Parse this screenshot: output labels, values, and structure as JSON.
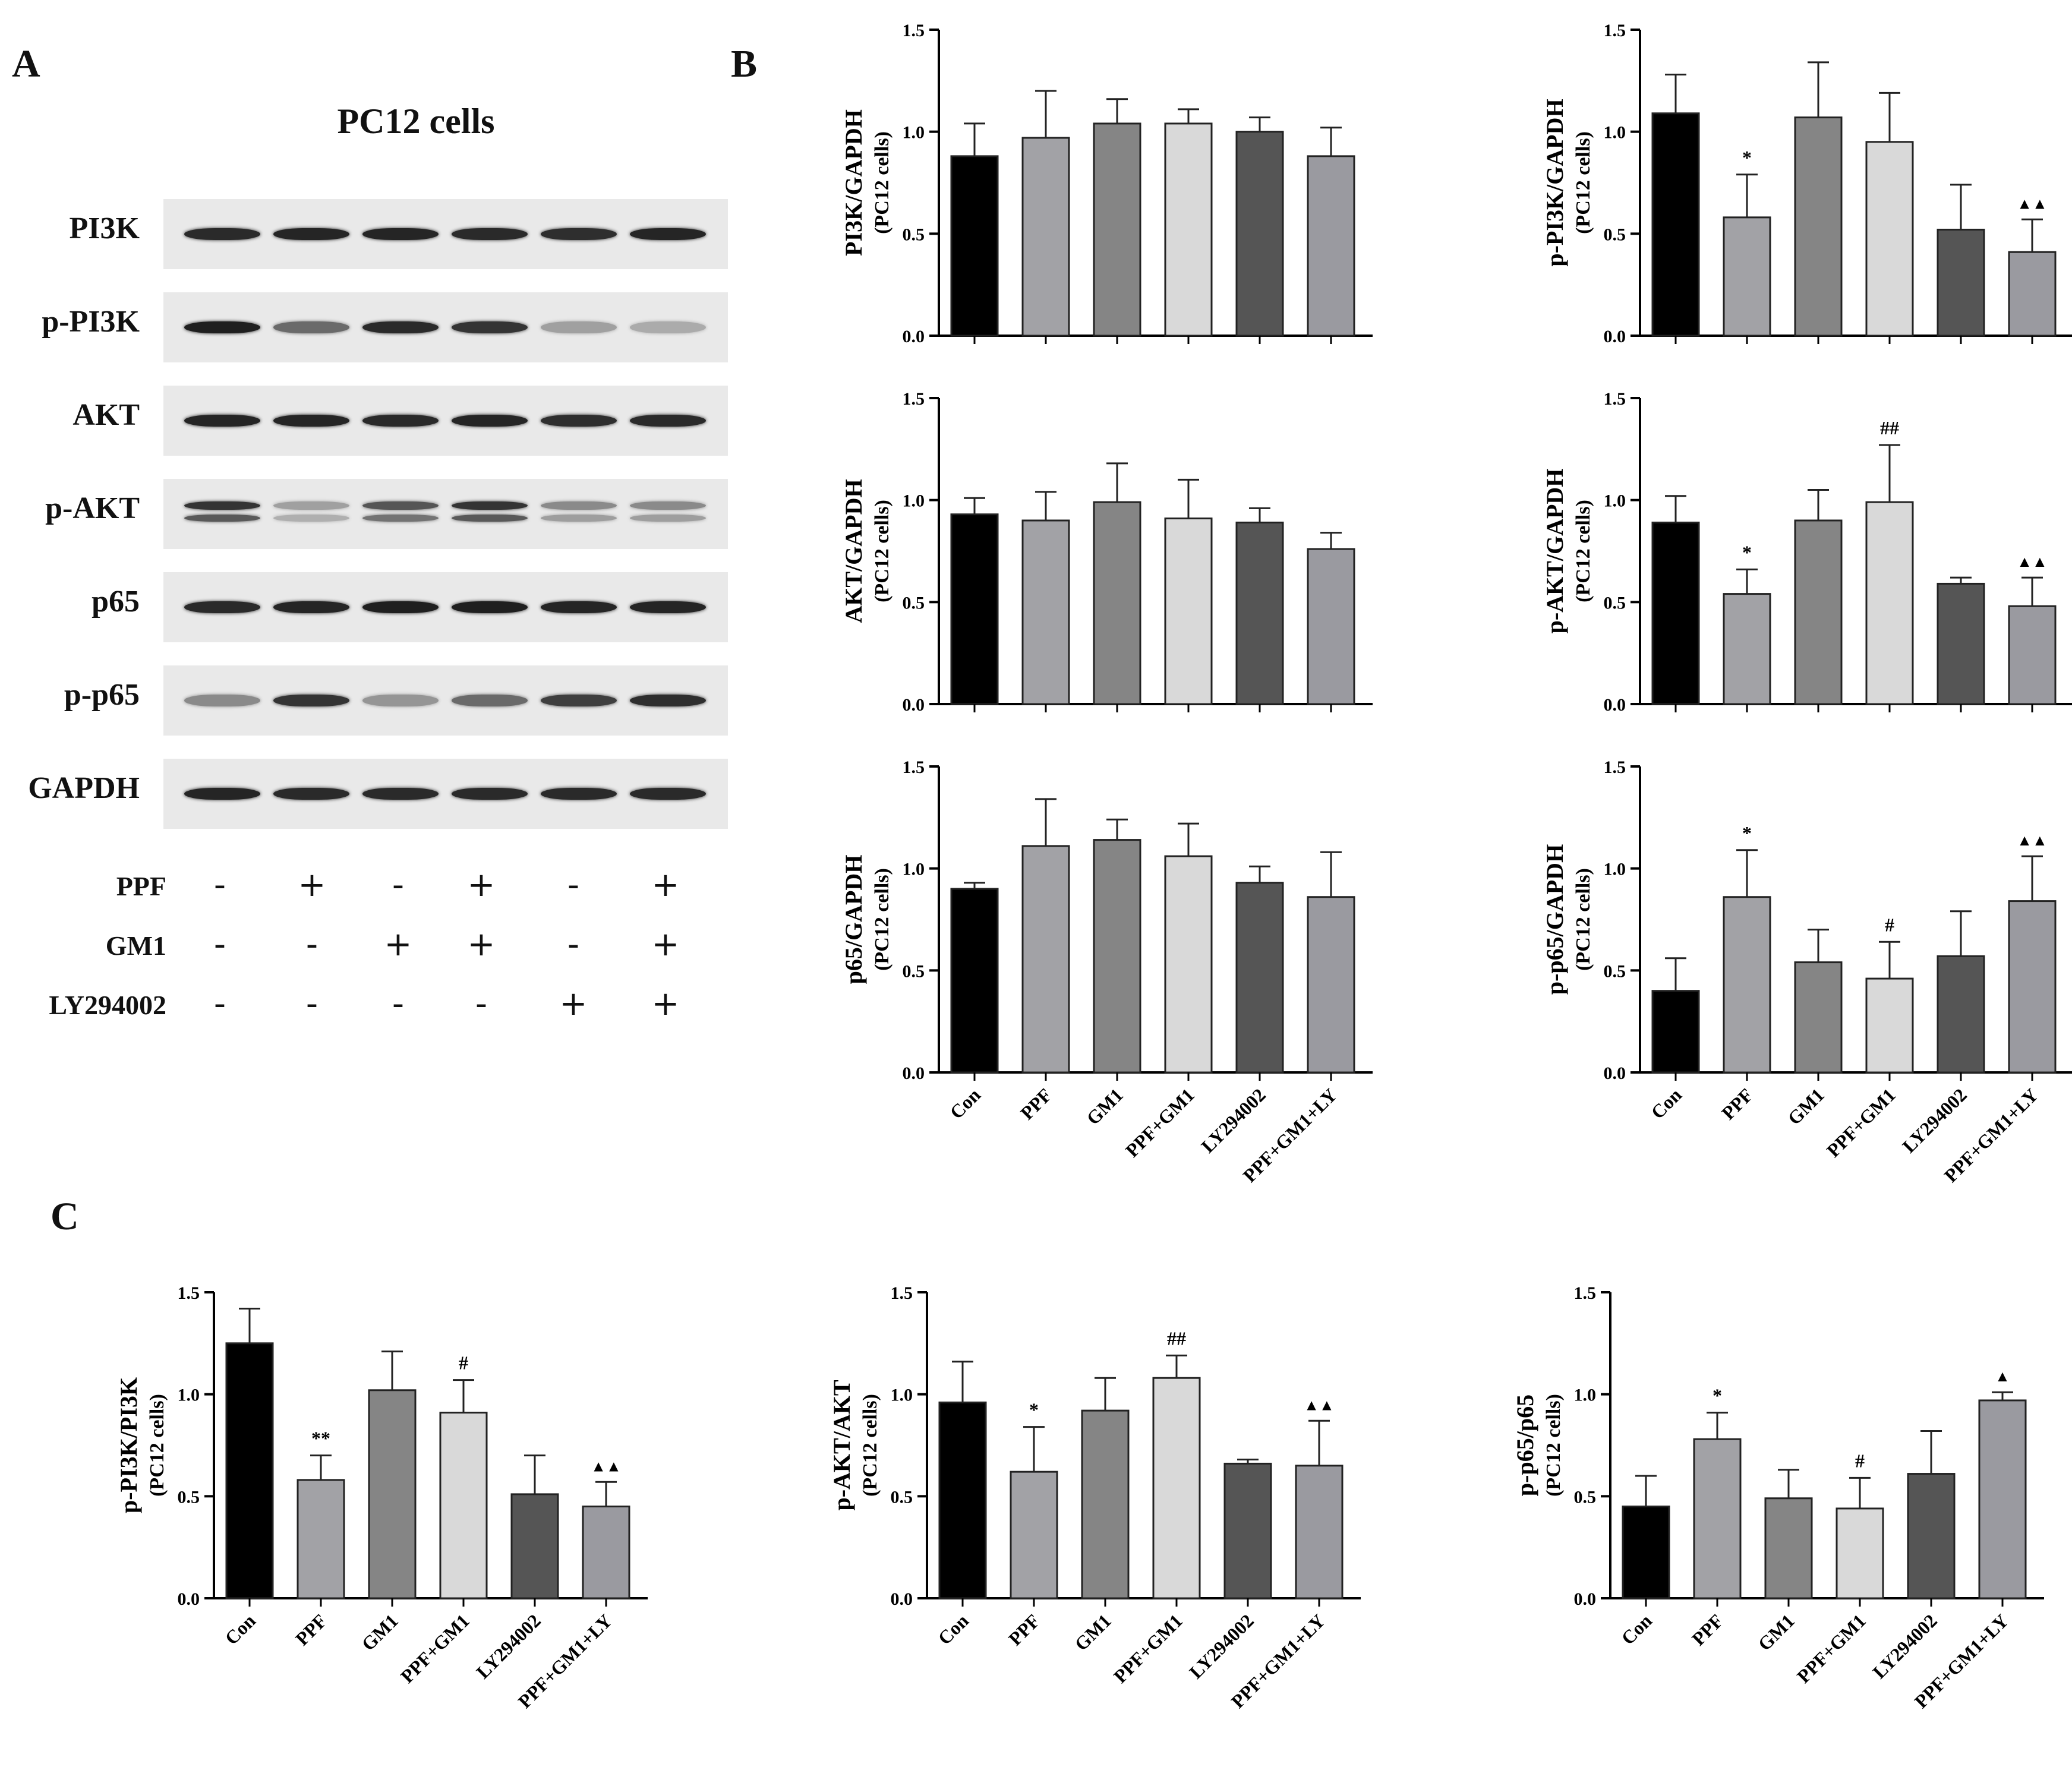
{
  "panels": {
    "a": "A",
    "b": "B",
    "c": "C"
  },
  "blot": {
    "title": "PC12 cells",
    "rows": [
      {
        "label": "PI3K",
        "intensities": [
          0.9,
          0.92,
          0.92,
          0.9,
          0.88,
          0.92
        ],
        "doublet": false
      },
      {
        "label": "p-PI3K",
        "intensities": [
          0.95,
          0.6,
          0.9,
          0.85,
          0.35,
          0.3
        ],
        "doublet": false
      },
      {
        "label": "AKT",
        "intensities": [
          0.92,
          0.92,
          0.9,
          0.92,
          0.88,
          0.9
        ],
        "doublet": false
      },
      {
        "label": "p-AKT",
        "intensities": [
          0.85,
          0.35,
          0.7,
          0.85,
          0.45,
          0.45
        ],
        "doublet": true
      },
      {
        "label": "p65",
        "intensities": [
          0.9,
          0.92,
          0.95,
          0.95,
          0.92,
          0.92
        ],
        "doublet": false
      },
      {
        "label": "p-p65",
        "intensities": [
          0.45,
          0.85,
          0.4,
          0.6,
          0.8,
          0.88
        ],
        "doublet": false
      },
      {
        "label": "GAPDH",
        "intensities": [
          0.92,
          0.9,
          0.9,
          0.9,
          0.9,
          0.9
        ],
        "doublet": false
      }
    ],
    "conditions": [
      {
        "label": "PPF",
        "signs": [
          "-",
          "+",
          "-",
          "+",
          "-",
          "+"
        ]
      },
      {
        "label": "GM1",
        "signs": [
          "-",
          "-",
          "+",
          "+",
          "-",
          "+"
        ]
      },
      {
        "label": "LY294002",
        "signs": [
          "-",
          "-",
          "-",
          "-",
          "+",
          "+"
        ]
      }
    ]
  },
  "colors": [
    "#000000",
    "#a2a2a6",
    "#858585",
    "#d9d9d9",
    "#555555",
    "#9a9aa0"
  ],
  "chart_data": [
    {
      "type": "bar",
      "ylabel": "PI3K/GAPDH",
      "ylabel2": "(PC12 cells)",
      "categories": [
        "Con",
        "PPF",
        "GM1",
        "PPF+GM1",
        "LY294002",
        "PPF+GM1+LY"
      ],
      "values": [
        0.88,
        0.97,
        1.04,
        1.04,
        1.0,
        0.88
      ],
      "errors": [
        0.16,
        0.23,
        0.12,
        0.07,
        0.07,
        0.14
      ],
      "annotations": [
        "",
        "",
        "",
        "",
        "",
        ""
      ],
      "ylim": [
        0,
        1.5
      ],
      "yticks": [
        "0.0",
        "0.5",
        "1.0",
        "1.5"
      ],
      "show_xlabels": false
    },
    {
      "type": "bar",
      "ylabel": "p-PI3K/GAPDH",
      "ylabel2": "(PC12 cells)",
      "categories": [
        "Con",
        "PPF",
        "GM1",
        "PPF+GM1",
        "LY294002",
        "PPF+GM1+LY"
      ],
      "values": [
        1.09,
        0.58,
        1.07,
        0.95,
        0.52,
        0.41
      ],
      "errors": [
        0.19,
        0.21,
        0.27,
        0.24,
        0.22,
        0.16
      ],
      "annotations": [
        "",
        "*",
        "",
        "",
        "",
        "▲▲"
      ],
      "ylim": [
        0,
        1.5
      ],
      "yticks": [
        "0.0",
        "0.5",
        "1.0",
        "1.5"
      ],
      "show_xlabels": false
    },
    {
      "type": "bar",
      "ylabel": "AKT/GAPDH",
      "ylabel2": "(PC12 cells)",
      "categories": [
        "Con",
        "PPF",
        "GM1",
        "PPF+GM1",
        "LY294002",
        "PPF+GM1+LY"
      ],
      "values": [
        0.93,
        0.9,
        0.99,
        0.91,
        0.89,
        0.76
      ],
      "errors": [
        0.08,
        0.14,
        0.19,
        0.19,
        0.07,
        0.08
      ],
      "annotations": [
        "",
        "",
        "",
        "",
        "",
        ""
      ],
      "ylim": [
        0,
        1.5
      ],
      "yticks": [
        "0.0",
        "0.5",
        "1.0",
        "1.5"
      ],
      "show_xlabels": false
    },
    {
      "type": "bar",
      "ylabel": "p-AKT/GAPDH",
      "ylabel2": "(PC12 cells)",
      "categories": [
        "Con",
        "PPF",
        "GM1",
        "PPF+GM1",
        "LY294002",
        "PPF+GM1+LY"
      ],
      "values": [
        0.89,
        0.54,
        0.9,
        0.99,
        0.59,
        0.48
      ],
      "errors": [
        0.13,
        0.12,
        0.15,
        0.28,
        0.03,
        0.14
      ],
      "annotations": [
        "",
        "*",
        "",
        "##",
        "",
        "▲▲"
      ],
      "ylim": [
        0,
        1.5
      ],
      "yticks": [
        "0.0",
        "0.5",
        "1.0",
        "1.5"
      ],
      "show_xlabels": false
    },
    {
      "type": "bar",
      "ylabel": "p65/GAPDH",
      "ylabel2": "(PC12 cells)",
      "categories": [
        "Con",
        "PPF",
        "GM1",
        "PPF+GM1",
        "LY294002",
        "PPF+GM1+LY"
      ],
      "values": [
        0.9,
        1.11,
        1.14,
        1.06,
        0.93,
        0.86
      ],
      "errors": [
        0.03,
        0.23,
        0.1,
        0.16,
        0.08,
        0.22
      ],
      "annotations": [
        "",
        "",
        "",
        "",
        "",
        ""
      ],
      "ylim": [
        0,
        1.5
      ],
      "yticks": [
        "0.0",
        "0.5",
        "1.0",
        "1.5"
      ],
      "show_xlabels": true
    },
    {
      "type": "bar",
      "ylabel": "p-p65/GAPDH",
      "ylabel2": "(PC12 cells)",
      "categories": [
        "Con",
        "PPF",
        "GM1",
        "PPF+GM1",
        "LY294002",
        "PPF+GM1+LY"
      ],
      "values": [
        0.4,
        0.86,
        0.54,
        0.46,
        0.57,
        0.84
      ],
      "errors": [
        0.16,
        0.23,
        0.16,
        0.18,
        0.22,
        0.22
      ],
      "annotations": [
        "",
        "*",
        "",
        "#",
        "",
        "▲▲"
      ],
      "ylim": [
        0,
        1.5
      ],
      "yticks": [
        "0.0",
        "0.5",
        "1.0",
        "1.5"
      ],
      "show_xlabels": true
    },
    {
      "type": "bar",
      "ylabel": "p-PI3K/PI3K",
      "ylabel2": "(PC12 cells)",
      "categories": [
        "Con",
        "PPF",
        "GM1",
        "PPF+GM1",
        "LY294002",
        "PPF+GM1+LY"
      ],
      "values": [
        1.25,
        0.58,
        1.02,
        0.91,
        0.51,
        0.45
      ],
      "errors": [
        0.17,
        0.12,
        0.19,
        0.16,
        0.19,
        0.12
      ],
      "annotations": [
        "",
        "**",
        "",
        "#",
        "",
        "▲▲"
      ],
      "ylim": [
        0,
        1.5
      ],
      "yticks": [
        "0.0",
        "0.5",
        "1.0",
        "1.5"
      ],
      "show_xlabels": true
    },
    {
      "type": "bar",
      "ylabel": "p-AKT/AKT",
      "ylabel2": "(PC12 cells)",
      "categories": [
        "Con",
        "PPF",
        "GM1",
        "PPF+GM1",
        "LY294002",
        "PPF+GM1+LY"
      ],
      "values": [
        0.96,
        0.62,
        0.92,
        1.08,
        0.66,
        0.65
      ],
      "errors": [
        0.2,
        0.22,
        0.16,
        0.11,
        0.02,
        0.22
      ],
      "annotations": [
        "",
        "*",
        "",
        "##",
        "",
        "▲▲"
      ],
      "ylim": [
        0,
        1.5
      ],
      "yticks": [
        "0.0",
        "0.5",
        "1.0",
        "1.5"
      ],
      "show_xlabels": true
    },
    {
      "type": "bar",
      "ylabel": "p-p65/p65",
      "ylabel2": "(PC12 cells)",
      "categories": [
        "Con",
        "PPF",
        "GM1",
        "PPF+GM1",
        "LY294002",
        "PPF+GM1+LY"
      ],
      "values": [
        0.45,
        0.78,
        0.49,
        0.44,
        0.61,
        0.97
      ],
      "errors": [
        0.15,
        0.13,
        0.14,
        0.15,
        0.21,
        0.04
      ],
      "annotations": [
        "",
        "*",
        "",
        "#",
        "",
        "▲"
      ],
      "ylim": [
        0,
        1.5
      ],
      "yticks": [
        "0.0",
        "0.5",
        "1.0",
        "1.5"
      ],
      "show_xlabels": true
    }
  ]
}
